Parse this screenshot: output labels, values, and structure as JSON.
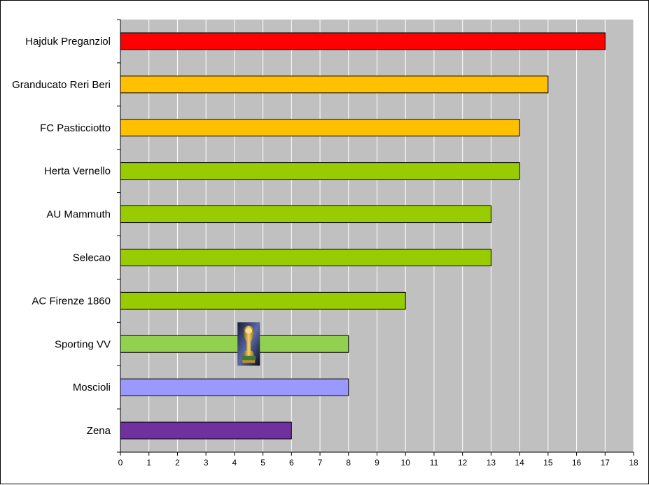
{
  "chart_data": {
    "type": "bar",
    "orientation": "horizontal",
    "title": "",
    "xlabel": "",
    "ylabel": "",
    "xlim": [
      0,
      18
    ],
    "x_ticks": [
      0,
      1,
      2,
      3,
      4,
      5,
      6,
      7,
      8,
      9,
      10,
      11,
      12,
      13,
      14,
      15,
      16,
      17,
      18
    ],
    "grid": "vertical",
    "legend": "none",
    "plot_background": "#c0c0c0",
    "categories": [
      "Hajduk Preganziol",
      "Granducato Reri Beri",
      "FC Pasticciotto",
      "Herta Vernello",
      "AU Mammuth",
      "Selecao",
      "AC Firenze 1860",
      "Sporting VV",
      "Moscioli",
      "Zena"
    ],
    "values": [
      17,
      15,
      14,
      14,
      13,
      13,
      10,
      8,
      8,
      6
    ],
    "colors": [
      "#ff0000",
      "#ffc000",
      "#ffc000",
      "#99cc00",
      "#99cc00",
      "#99cc00",
      "#99cc00",
      "#92d050",
      "#9999ff",
      "#7030a0"
    ],
    "annotations": [
      {
        "category": "Sporting VV",
        "icon": "trophy-icon"
      }
    ]
  }
}
